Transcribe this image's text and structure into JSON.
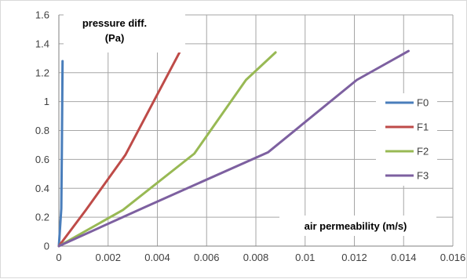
{
  "chart_data": {
    "type": "line",
    "title": "",
    "ylabel_lines": [
      "pressure diff.",
      "(Pa)"
    ],
    "xlabel": "air permeability (m/s)",
    "xlim": [
      0,
      0.016
    ],
    "ylim": [
      0,
      1.6
    ],
    "x_ticks": [
      "0",
      "0.002",
      "0.004",
      "0.006",
      "0.008",
      "0.01",
      "0.012",
      "0.014",
      "0.016"
    ],
    "y_ticks": [
      "0",
      "0.2",
      "0.4",
      "0.6",
      "0.8",
      "1",
      "1.2",
      "1.4",
      "1.6"
    ],
    "grid": true,
    "legend_position": "right",
    "series": [
      {
        "name": "F0",
        "color": "#4a7ebb",
        "points": [
          [
            0,
            0
          ],
          [
            0.0001,
            0.26
          ],
          [
            0.00012,
            0.65
          ],
          [
            0.00015,
            1.28
          ]
        ]
      },
      {
        "name": "F1",
        "color": "#be4b48",
        "points": [
          [
            0,
            0
          ],
          [
            0.0011,
            0.25
          ],
          [
            0.0027,
            0.63
          ],
          [
            0.0049,
            1.34
          ]
        ]
      },
      {
        "name": "F2",
        "color": "#98b954",
        "points": [
          [
            0,
            0
          ],
          [
            0.0026,
            0.25
          ],
          [
            0.0055,
            0.64
          ],
          [
            0.0076,
            1.15
          ],
          [
            0.0088,
            1.34
          ]
        ]
      },
      {
        "name": "F3",
        "color": "#7d60a0",
        "points": [
          [
            0,
            0
          ],
          [
            0.0035,
            0.27
          ],
          [
            0.0085,
            0.65
          ],
          [
            0.0121,
            1.15
          ],
          [
            0.0142,
            1.35
          ]
        ]
      }
    ]
  }
}
